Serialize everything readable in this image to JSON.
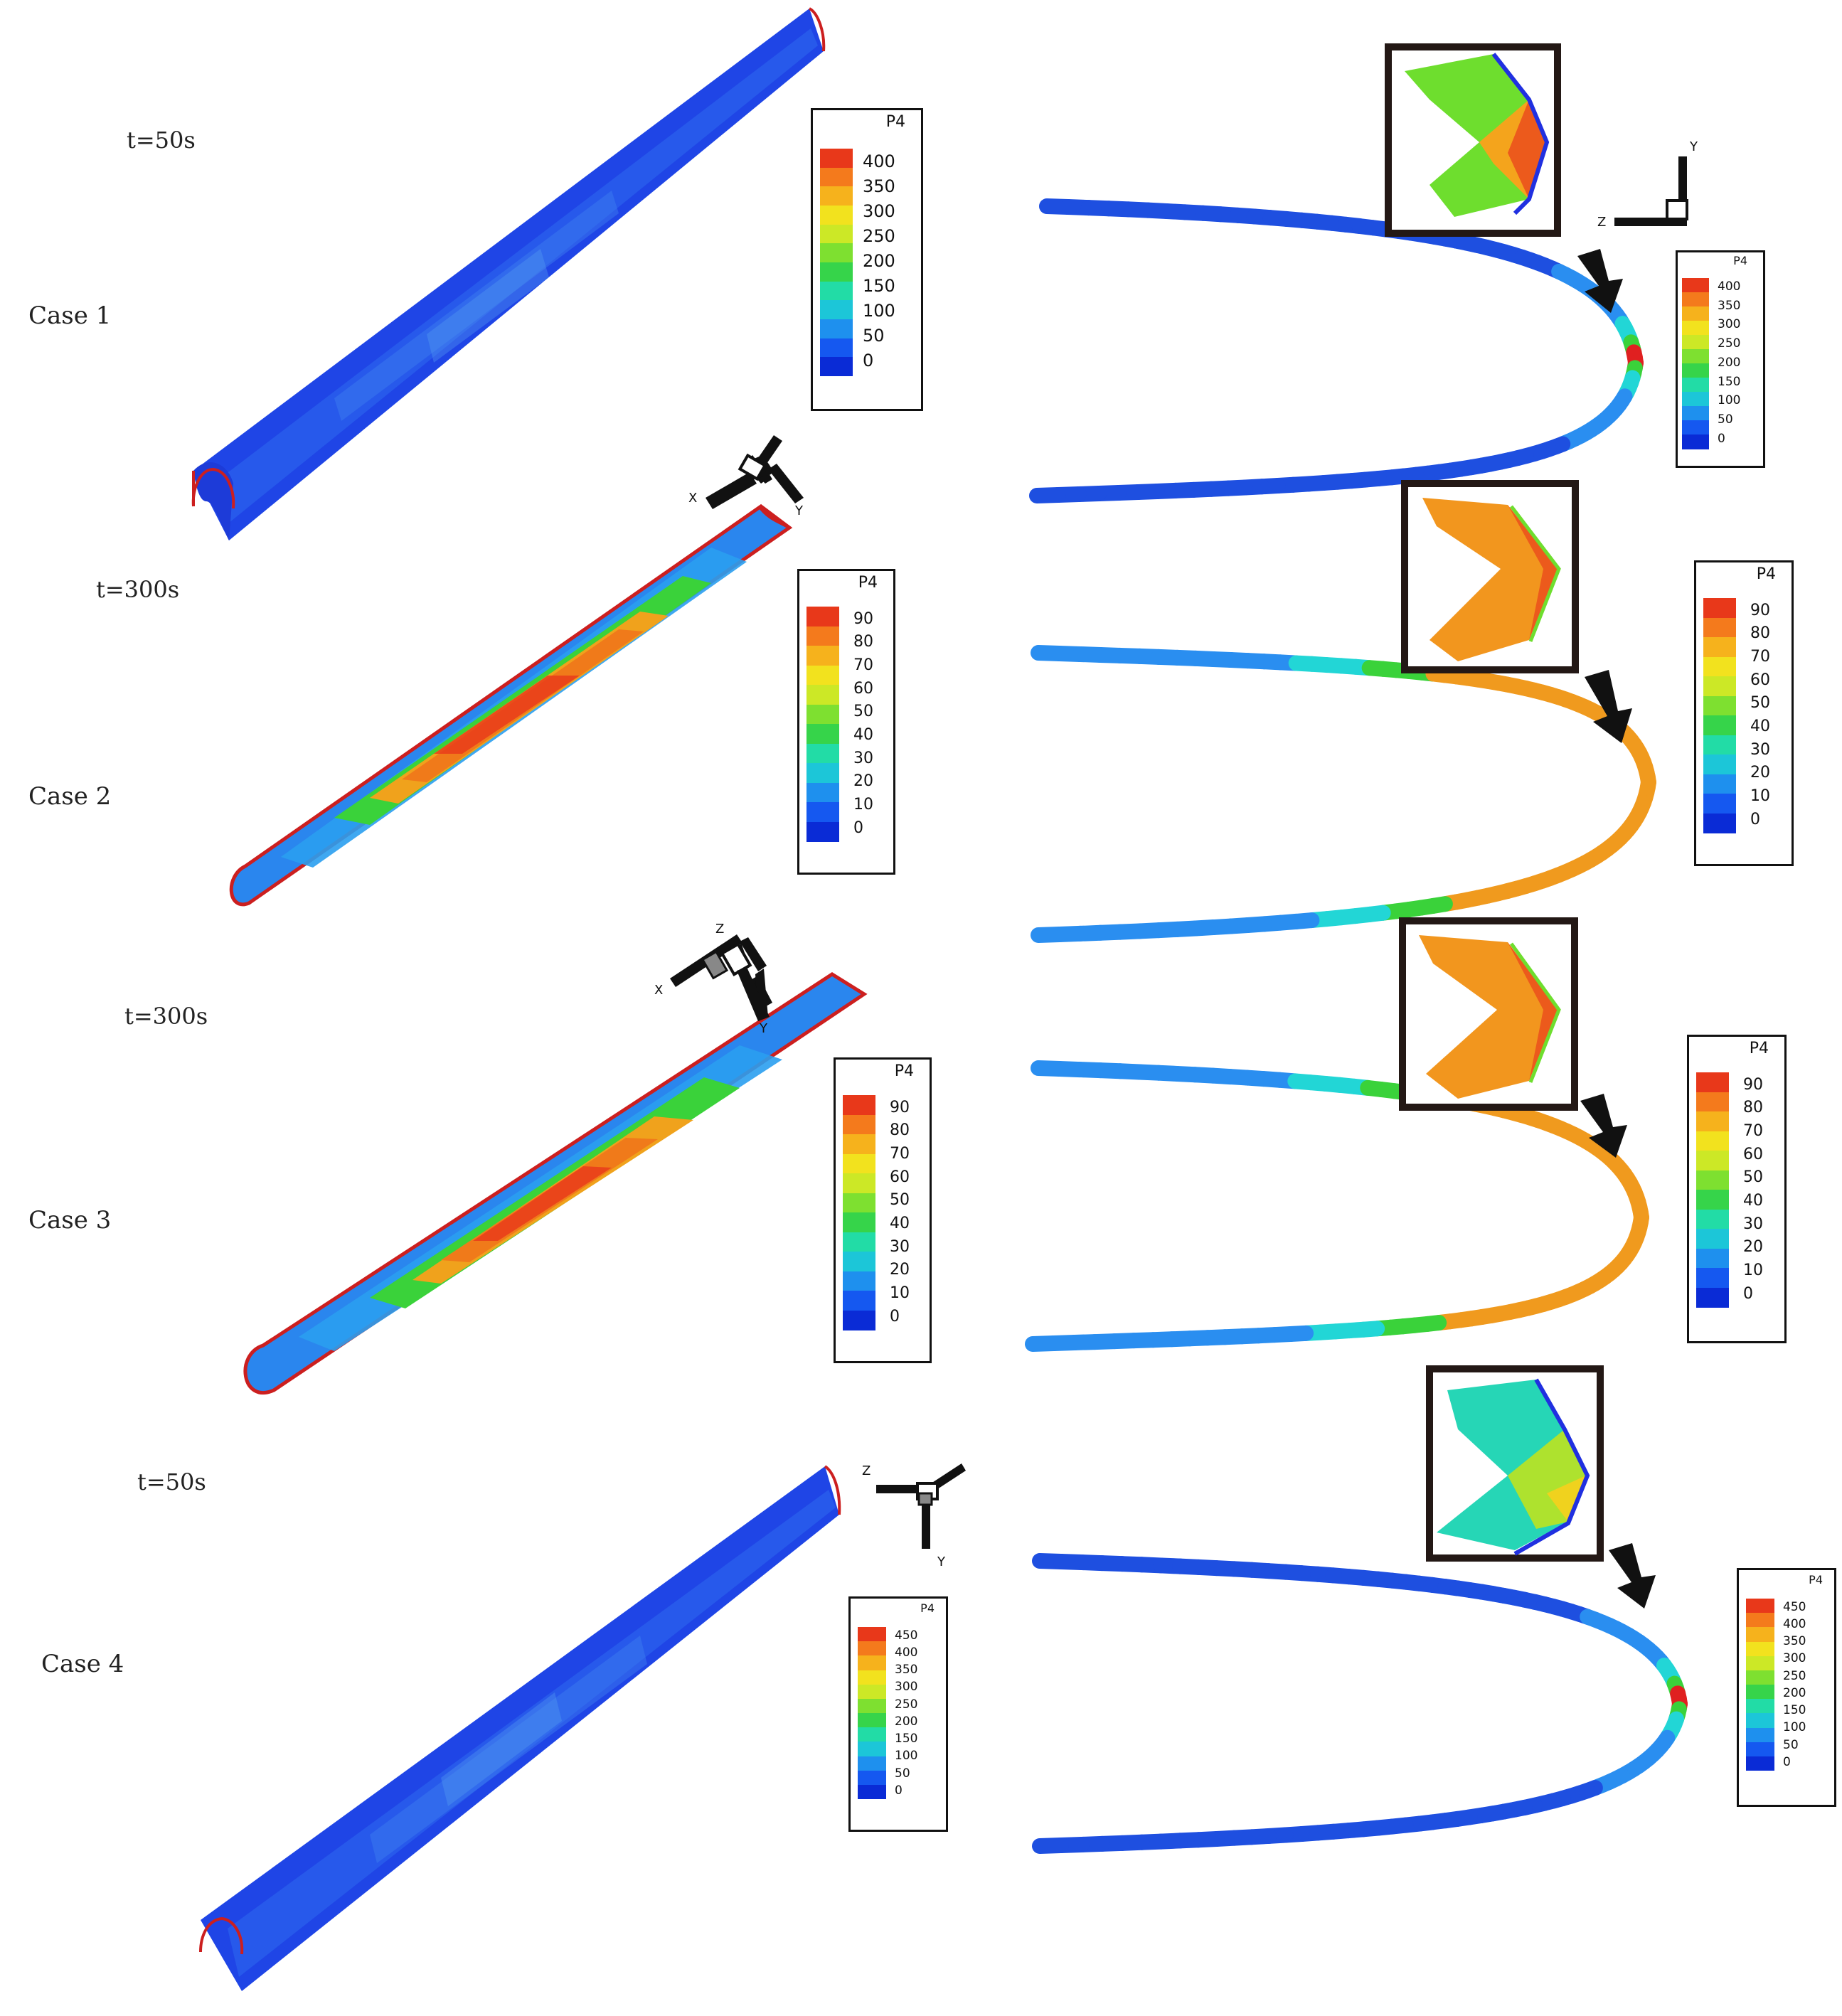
{
  "colors": {
    "blue": "#1e4fe0",
    "lightblue": "#2a8ef0",
    "cyan": "#22d6d6",
    "green": "#3ad23a",
    "yellow": "#e8e826",
    "orange": "#f09a1e",
    "red": "#e02020",
    "outline": "#cc1f1f"
  },
  "colormap": [
    "#0a2bd6",
    "#1558f0",
    "#1e90ee",
    "#1cc6d8",
    "#22dca6",
    "#36d44a",
    "#7ee030",
    "#cce826",
    "#f2e21e",
    "#f6b21c",
    "#f47a1c",
    "#e8381a"
  ],
  "cases": [
    {
      "label": "Case 1",
      "time": "t=50s",
      "legend_title": "P4",
      "legend_ticks": [
        "400",
        "350",
        "300",
        "250",
        "200",
        "150",
        "100",
        "50",
        "0"
      ],
      "right_legend_ticks": [
        "400",
        "350",
        "300",
        "250",
        "200",
        "150",
        "100",
        "50",
        "0"
      ],
      "axes": [
        "Y",
        "Z"
      ]
    },
    {
      "label": "Case 2",
      "time": "t=300s",
      "legend_title": "P4",
      "legend_ticks": [
        "90",
        "80",
        "70",
        "60",
        "50",
        "40",
        "30",
        "20",
        "10",
        "0"
      ],
      "right_legend_ticks": [
        "90",
        "80",
        "70",
        "60",
        "50",
        "40",
        "30",
        "20",
        "10",
        "0"
      ],
      "axes": [
        "X",
        "Y"
      ]
    },
    {
      "label": "Case 3",
      "time": "t=300s",
      "legend_title": "P4",
      "legend_ticks": [
        "90",
        "80",
        "70",
        "60",
        "50",
        "40",
        "30",
        "20",
        "10",
        "0"
      ],
      "right_legend_ticks": [
        "90",
        "80",
        "70",
        "60",
        "50",
        "40",
        "30",
        "20",
        "10",
        "0"
      ],
      "axes": [
        "Z",
        "X",
        "Y"
      ]
    },
    {
      "label": "Case 4",
      "time": "t=50s",
      "legend_title": "P4",
      "legend_ticks": [
        "450",
        "400",
        "350",
        "300",
        "250",
        "200",
        "150",
        "100",
        "50",
        "0"
      ],
      "right_legend_ticks": [
        "450",
        "400",
        "350",
        "300",
        "250",
        "200",
        "150",
        "100",
        "50",
        "0"
      ],
      "axes": [
        "Z",
        "Y"
      ]
    }
  ]
}
